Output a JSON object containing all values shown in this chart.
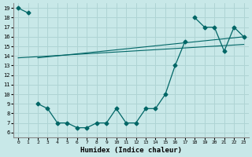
{
  "xlabel": "Humidex (Indice chaleur)",
  "background_color": "#c8e8e8",
  "grid_color": "#afd4d4",
  "line_color": "#006666",
  "xlim": [
    -0.5,
    23.5
  ],
  "ylim": [
    5.5,
    19.5
  ],
  "xticks": [
    0,
    1,
    2,
    3,
    4,
    5,
    6,
    7,
    8,
    9,
    10,
    11,
    12,
    13,
    14,
    15,
    16,
    17,
    18,
    19,
    20,
    21,
    22,
    23
  ],
  "yticks": [
    6,
    7,
    8,
    9,
    10,
    11,
    12,
    13,
    14,
    15,
    16,
    17,
    18,
    19
  ],
  "series1_x": [
    0,
    1,
    18,
    19,
    20,
    21,
    22,
    23
  ],
  "series1_y": [
    19,
    18.5,
    18,
    17,
    17,
    14.5,
    17,
    16
  ],
  "series2_x": [
    2,
    3,
    4,
    5,
    6,
    7,
    8,
    9,
    10,
    11,
    12,
    13,
    14,
    15,
    16,
    17
  ],
  "series2_y": [
    9,
    8.5,
    7.0,
    7.0,
    6.5,
    6.5,
    7.0,
    7.0,
    8.5,
    7.0,
    7.0,
    8.5,
    8.5,
    10.0,
    13.0,
    15.5
  ],
  "regline1_x": [
    0,
    23
  ],
  "regline1_y": [
    13.8,
    15.2
  ],
  "regline2_x": [
    2,
    23
  ],
  "regline2_y": [
    13.8,
    16.0
  ]
}
